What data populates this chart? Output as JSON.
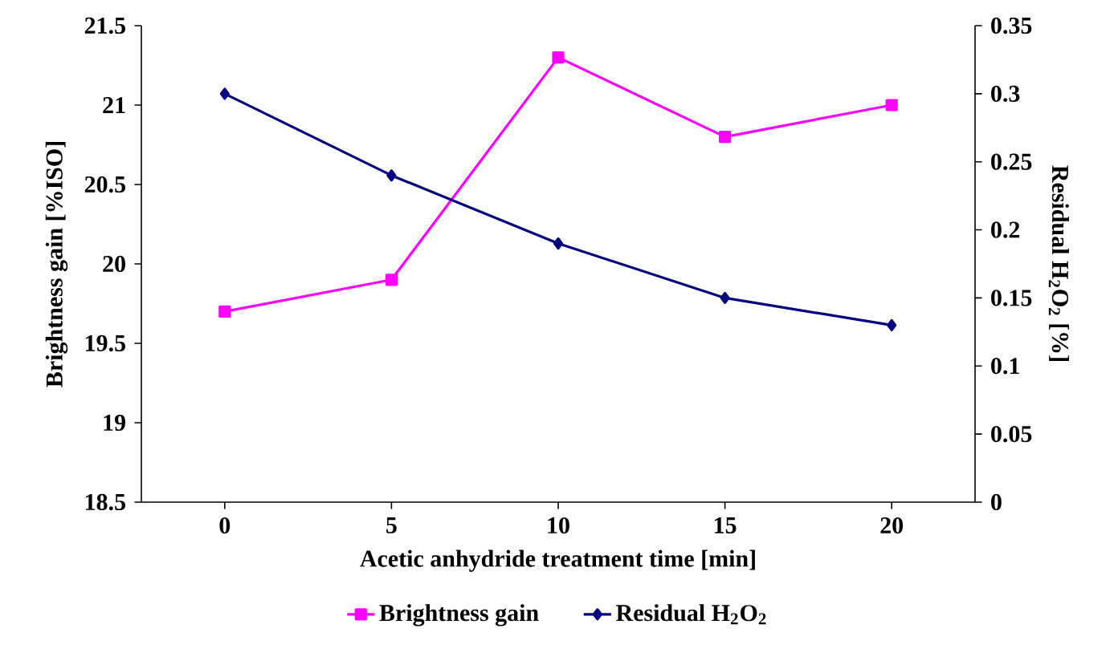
{
  "chart_data": {
    "type": "line",
    "categories": [
      "0",
      "5",
      "10",
      "15",
      "20"
    ],
    "xlabel": "Acetic anhydride treatment time [min]",
    "ylabel": "Brightness gain [%ISO]",
    "y2label": "Residual H$_{2}$O$_{2}$ [%]",
    "ylim": [
      18.5,
      21.5
    ],
    "yticks": [
      18.5,
      19,
      19.5,
      20,
      20.5,
      21,
      21.5
    ],
    "y2lim": [
      0,
      0.35
    ],
    "y2ticks": [
      0,
      0.05,
      0.1,
      0.15,
      0.2,
      0.25,
      0.3,
      0.35
    ],
    "legend": "bottom",
    "series": [
      {
        "name": "Brightness gain",
        "color": "#ff00ff",
        "marker": "square",
        "values": [
          19.7,
          19.9,
          21.3,
          20.8,
          21.0
        ]
      },
      {
        "name": "Residual H$_{2}$O$_{2}$",
        "color": "#000080",
        "marker": "diamond",
        "axis": "y2",
        "values": [
          0.3,
          0.24,
          0.19,
          0.15,
          0.13
        ]
      }
    ]
  }
}
